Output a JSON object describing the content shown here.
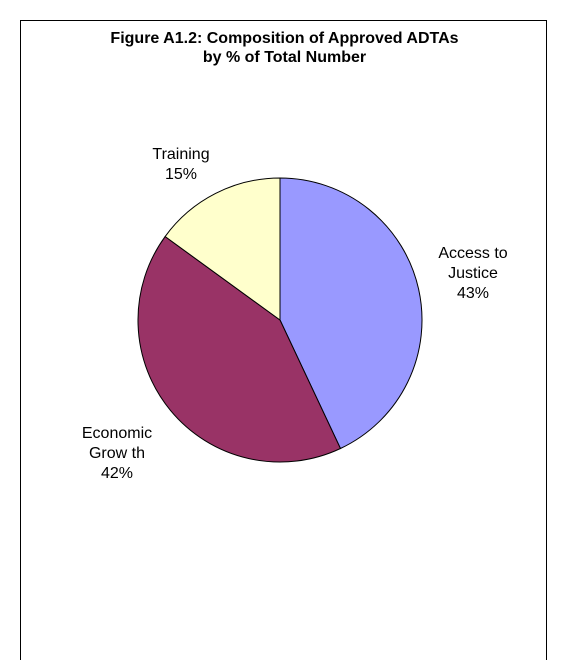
{
  "chart_data": {
    "type": "pie",
    "title_lines": [
      "Figure A1.2: Composition of Approved ADTAs",
      "by % of  Total Number"
    ],
    "slices": [
      {
        "label_lines": [
          "Access to",
          "Justice"
        ],
        "percent_label": "43%",
        "value": 43,
        "color": "#9999ff"
      },
      {
        "label_lines": [
          "Economic",
          "Grow th"
        ],
        "percent_label": "42%",
        "value": 42,
        "color": "#993366"
      },
      {
        "label_lines": [
          "Training"
        ],
        "percent_label": "15%",
        "value": 15,
        "color": "#ffffcc"
      }
    ],
    "start_angle_deg": 0,
    "direction": "clockwise"
  }
}
